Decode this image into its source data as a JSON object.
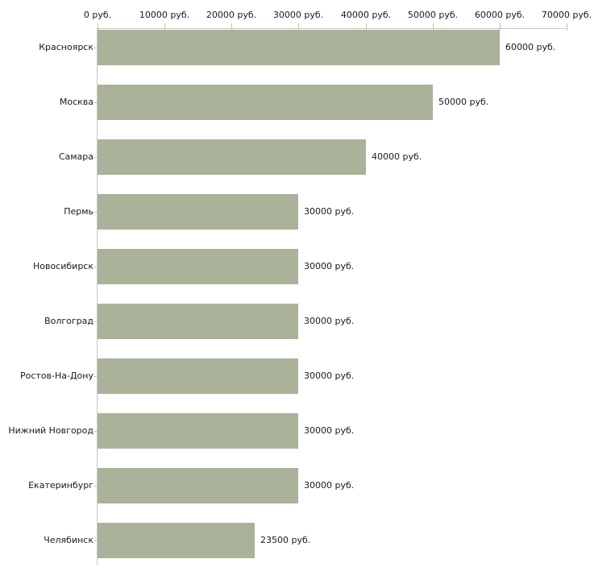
{
  "chart_data": {
    "type": "bar",
    "orientation": "horizontal",
    "title": "",
    "xlabel": "",
    "ylabel": "",
    "grid": false,
    "legend": false,
    "categories": [
      "Красноярск",
      "Москва",
      "Самара",
      "Пермь",
      "Новосибирск",
      "Волгоград",
      "Ростов-На-Дону",
      "Нижний Новгород",
      "Екатеринбург",
      "Челябинск"
    ],
    "values": [
      60000,
      50000,
      40000,
      30000,
      30000,
      30000,
      30000,
      30000,
      30000,
      23500
    ],
    "bar_labels": [
      "60000 руб.",
      "50000 руб.",
      "40000 руб.",
      "30000 руб.",
      "30000 руб.",
      "30000 руб.",
      "30000 руб.",
      "30000 руб.",
      "30000 руб.",
      "23500 руб."
    ],
    "x_axis": {
      "position": "top",
      "range": [
        0,
        70000
      ],
      "ticks": [
        0,
        10000,
        20000,
        30000,
        40000,
        50000,
        60000,
        70000
      ],
      "tick_labels": [
        "0 руб.",
        "10000 руб.",
        "20000 руб.",
        "30000 руб.",
        "40000 руб.",
        "50000 руб.",
        "60000 руб.",
        "70000 руб."
      ]
    },
    "colors": {
      "bar": "#abb29a",
      "axis_line": "#c6c6c6",
      "tick_mark": "#c3c69c",
      "text": "#1a1a1a",
      "background": "#ffffff"
    }
  }
}
